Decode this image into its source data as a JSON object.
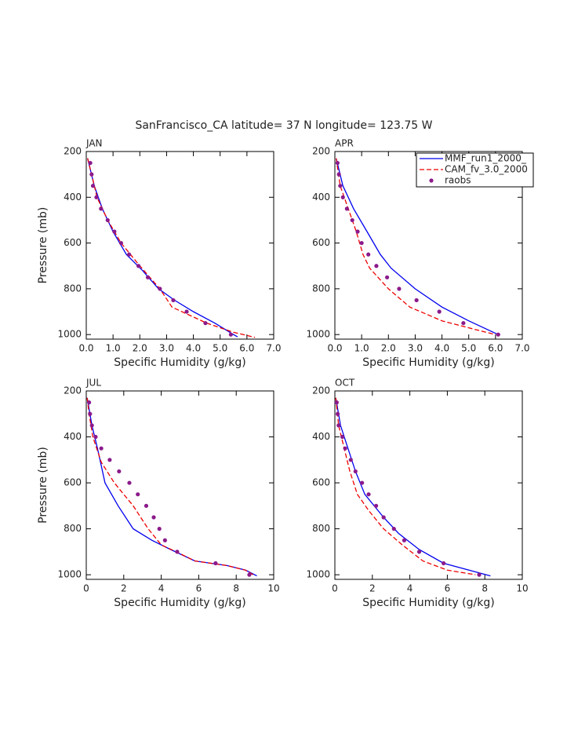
{
  "title": "SanFrancisco_CA  latitude= 37 N longitude= 123.75 W",
  "chart_data": [
    {
      "type": "line",
      "title": "JAN",
      "xlabel": "Specific Humidity (g/kg)",
      "ylabel": "Pressure (mb)",
      "xlim": [
        0,
        7
      ],
      "ylim": [
        1020,
        200
      ],
      "xticks": [
        {
          "value": 0,
          "label": "0.0"
        },
        {
          "value": 1,
          "label": "1.0"
        },
        {
          "value": 2,
          "label": "2.0"
        },
        {
          "value": 3,
          "label": "3.0"
        },
        {
          "value": 4,
          "label": "4.0"
        },
        {
          "value": 5,
          "label": "5.0"
        },
        {
          "value": 6,
          "label": "6.0"
        },
        {
          "value": 7,
          "label": "7.0"
        }
      ],
      "yticks": [
        200,
        400,
        600,
        800,
        1000
      ],
      "series": [
        {
          "style": "solid",
          "color": "#0000ee",
          "x": [
            0.05,
            0.3,
            0.6,
            1.0,
            1.5,
            2.1,
            2.7,
            3.3,
            4.0,
            4.8,
            5.5,
            5.65
          ],
          "y": [
            230,
            350,
            450,
            550,
            650,
            720,
            800,
            850,
            900,
            950,
            1000,
            1010
          ]
        },
        {
          "style": "dash",
          "color": "#ee0000",
          "x": [
            0.05,
            0.2,
            0.4,
            0.8,
            1.3,
            2.0,
            2.75,
            3.2,
            4.5,
            5.5,
            6.3
          ],
          "y": [
            230,
            300,
            400,
            500,
            600,
            700,
            800,
            880,
            950,
            990,
            1012
          ]
        },
        {
          "style": "dots",
          "color": "#8b1a8b",
          "x": [
            0.15,
            0.2,
            0.25,
            0.38,
            0.55,
            0.8,
            1.05,
            1.3,
            1.6,
            1.95,
            2.3,
            2.75,
            3.25,
            3.75,
            4.45,
            5.4
          ],
          "y": [
            250,
            300,
            350,
            400,
            450,
            500,
            550,
            600,
            650,
            700,
            750,
            800,
            850,
            900,
            950,
            1000
          ]
        }
      ]
    },
    {
      "type": "line",
      "title": "APR",
      "xlabel": "Specific Humidity (g/kg)",
      "legend": true,
      "xlim": [
        0,
        7
      ],
      "ylim": [
        1020,
        200
      ],
      "xticks": [
        {
          "value": 0,
          "label": "0.0"
        },
        {
          "value": 1,
          "label": "1.0"
        },
        {
          "value": 2,
          "label": "2.0"
        },
        {
          "value": 3,
          "label": "3.0"
        },
        {
          "value": 4,
          "label": "4.0"
        },
        {
          "value": 5,
          "label": "5.0"
        },
        {
          "value": 6,
          "label": "6.0"
        },
        {
          "value": 7,
          "label": "7.0"
        }
      ],
      "yticks": [
        200,
        400,
        600,
        800,
        1000
      ],
      "series": [
        {
          "name": "MMF_run1_2000_",
          "style": "solid",
          "color": "#0000ee",
          "x": [
            0.05,
            0.3,
            0.7,
            1.2,
            1.7,
            2.1,
            3.0,
            4.0,
            5.0,
            6.1
          ],
          "y": [
            230,
            350,
            450,
            550,
            650,
            710,
            800,
            880,
            940,
            1000
          ]
        },
        {
          "name": "CAM_fv_3.0_2000",
          "style": "dash",
          "color": "#ee0000",
          "x": [
            0.05,
            0.2,
            0.5,
            0.8,
            1.05,
            1.3,
            2.0,
            2.8,
            4.0,
            5.3,
            6.0
          ],
          "y": [
            230,
            350,
            450,
            550,
            650,
            710,
            800,
            880,
            940,
            980,
            1000
          ]
        },
        {
          "name": "raobs",
          "style": "dots",
          "color": "#8b1a8b",
          "x": [
            0.1,
            0.15,
            0.2,
            0.3,
            0.45,
            0.65,
            0.85,
            1.0,
            1.25,
            1.55,
            1.95,
            2.4,
            3.05,
            3.9,
            4.8,
            6.1
          ],
          "y": [
            250,
            300,
            350,
            400,
            450,
            500,
            550,
            600,
            650,
            700,
            750,
            800,
            850,
            900,
            950,
            1000
          ]
        }
      ]
    },
    {
      "type": "line",
      "title": "JUL",
      "xlabel": "Specific Humidity (g/kg)",
      "ylabel": "Pressure (mb)",
      "xlim": [
        0,
        10
      ],
      "ylim": [
        1020,
        200
      ],
      "xticks": [
        0,
        2,
        4,
        6,
        8,
        10
      ],
      "yticks": [
        200,
        400,
        600,
        800,
        1000
      ],
      "series": [
        {
          "style": "solid",
          "color": "#0000ee",
          "x": [
            0.05,
            0.3,
            0.6,
            1.0,
            1.7,
            2.5,
            3.5,
            4.5,
            5.8,
            7.5,
            8.5,
            9.1
          ],
          "y": [
            230,
            350,
            450,
            600,
            700,
            800,
            850,
            890,
            940,
            960,
            980,
            1005
          ]
        },
        {
          "style": "dash",
          "color": "#ee0000",
          "x": [
            0.05,
            0.15,
            0.35,
            0.8,
            1.5,
            2.5,
            3.3,
            4.0,
            4.8,
            5.8,
            7.5,
            8.5,
            8.9
          ],
          "y": [
            230,
            300,
            400,
            510,
            600,
            700,
            800,
            870,
            900,
            940,
            960,
            980,
            1000
          ]
        },
        {
          "style": "dots",
          "color": "#8b1a8b",
          "x": [
            0.15,
            0.2,
            0.3,
            0.5,
            0.8,
            1.25,
            1.75,
            2.3,
            2.75,
            3.2,
            3.6,
            3.9,
            4.2,
            4.85,
            6.9,
            8.7
          ],
          "y": [
            250,
            300,
            350,
            400,
            450,
            500,
            550,
            600,
            650,
            700,
            750,
            800,
            850,
            900,
            950,
            1000
          ]
        }
      ]
    },
    {
      "type": "line",
      "title": "OCT",
      "xlabel": "Specific Humidity (g/kg)",
      "xlim": [
        0,
        10
      ],
      "ylim": [
        1020,
        200
      ],
      "xticks": [
        0,
        2,
        4,
        6,
        8,
        10
      ],
      "yticks": [
        200,
        400,
        600,
        800,
        1000
      ],
      "series": [
        {
          "style": "solid",
          "color": "#0000ee",
          "x": [
            0.05,
            0.3,
            0.7,
            1.1,
            1.6,
            2.6,
            3.4,
            4.5,
            5.8,
            8.3
          ],
          "y": [
            230,
            350,
            450,
            550,
            650,
            750,
            820,
            890,
            950,
            1005
          ]
        },
        {
          "style": "dash",
          "color": "#ee0000",
          "x": [
            0.05,
            0.2,
            0.5,
            0.8,
            1.2,
            1.8,
            2.6,
            3.6,
            4.7,
            6.0,
            7.5
          ],
          "y": [
            230,
            350,
            450,
            550,
            650,
            720,
            800,
            870,
            940,
            980,
            1000
          ]
        },
        {
          "style": "dots",
          "color": "#8b1a8b",
          "x": [
            0.1,
            0.15,
            0.2,
            0.4,
            0.55,
            0.85,
            1.1,
            1.45,
            1.8,
            2.2,
            2.6,
            3.15,
            3.7,
            4.5,
            5.8,
            7.7
          ],
          "y": [
            250,
            300,
            350,
            400,
            450,
            500,
            550,
            600,
            650,
            700,
            750,
            800,
            850,
            900,
            950,
            1000
          ]
        }
      ]
    }
  ]
}
